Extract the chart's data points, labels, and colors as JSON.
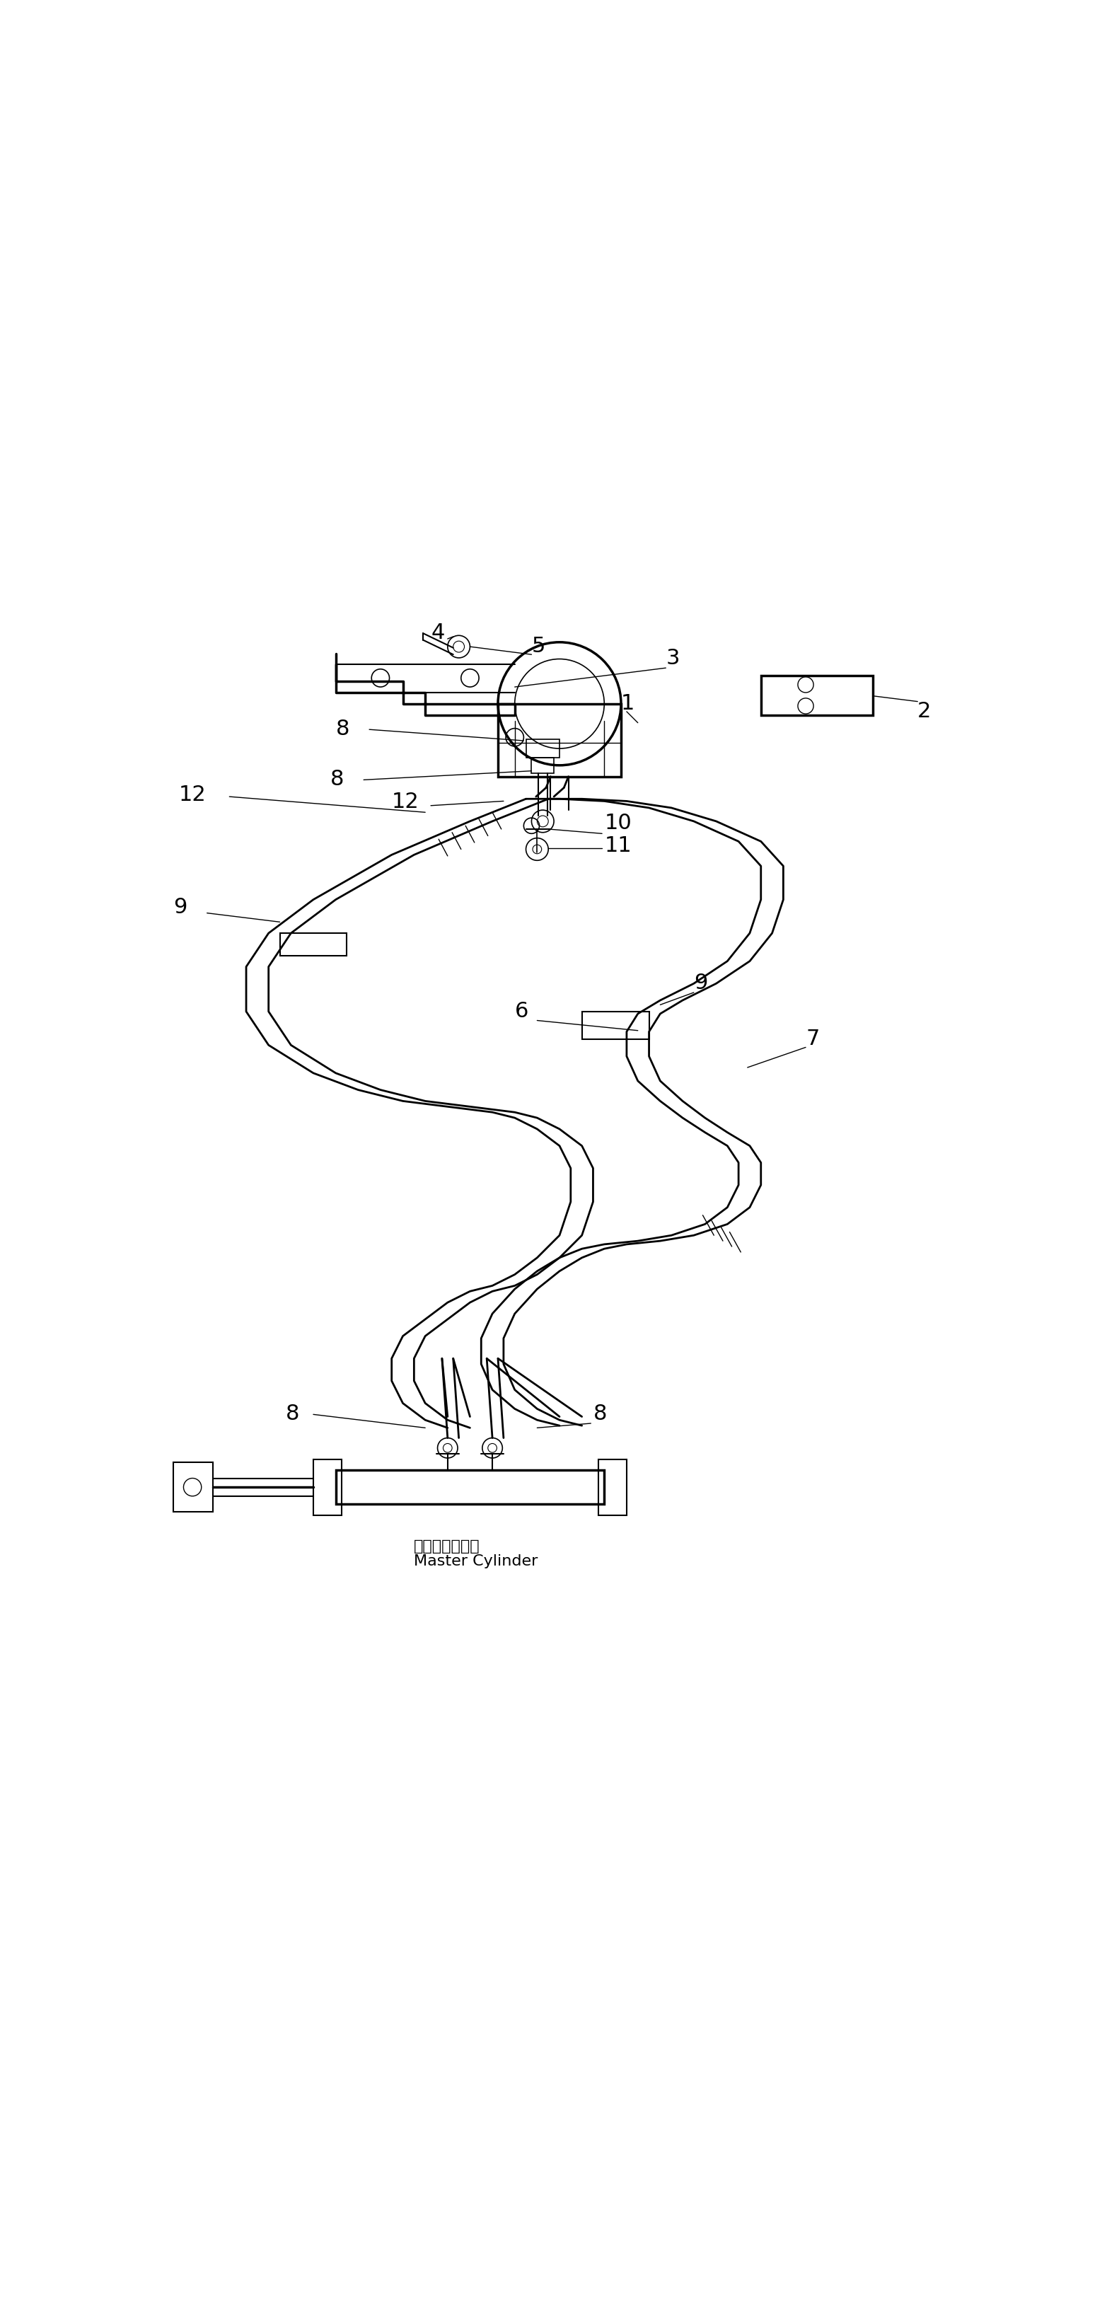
{
  "title": "",
  "background_color": "#ffffff",
  "line_color": "#000000",
  "fig_width": 15.82,
  "fig_height": 32.71
}
